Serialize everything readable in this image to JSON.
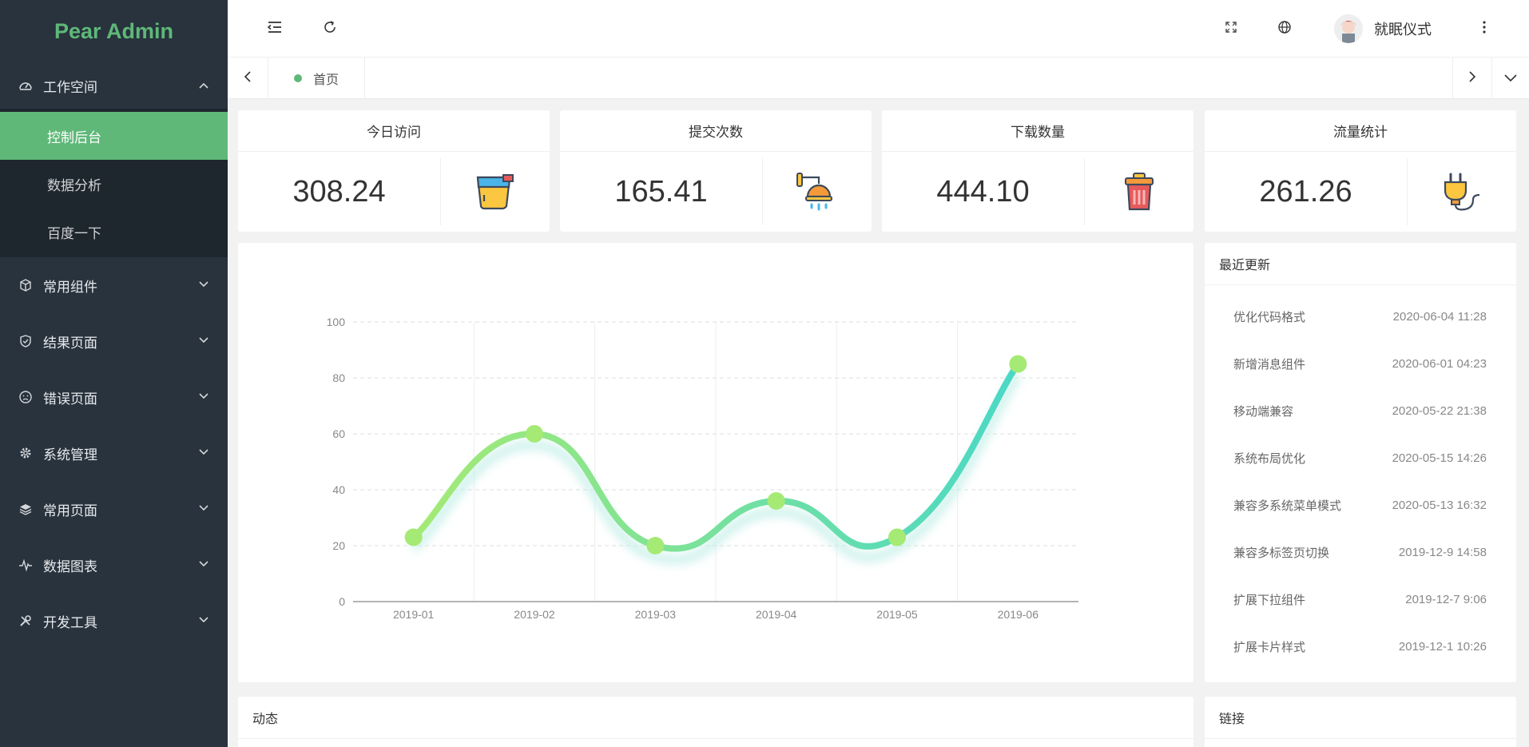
{
  "app": {
    "name": "Pear Admin"
  },
  "sidebar": {
    "workspace": {
      "label": "工作空间",
      "items": [
        {
          "label": "控制后台"
        },
        {
          "label": "数据分析"
        },
        {
          "label": "百度一下"
        }
      ]
    },
    "groups": [
      {
        "label": "常用组件"
      },
      {
        "label": "结果页面"
      },
      {
        "label": "错误页面"
      },
      {
        "label": "系统管理"
      },
      {
        "label": "常用页面"
      },
      {
        "label": "数据图表"
      },
      {
        "label": "开发工具"
      }
    ]
  },
  "header": {
    "user_name": "就眠仪式"
  },
  "tabs": [
    {
      "label": "首页"
    }
  ],
  "stats": [
    {
      "title": "今日访问",
      "value": "308.24",
      "icon": "paint-bucket-icon"
    },
    {
      "title": "提交次数",
      "value": "165.41",
      "icon": "shower-icon"
    },
    {
      "title": "下载数量",
      "value": "444.10",
      "icon": "trash-can-icon"
    },
    {
      "title": "流量统计",
      "value": "261.26",
      "icon": "plug-icon"
    }
  ],
  "chart_data": {
    "type": "line",
    "categories": [
      "2019-01",
      "2019-02",
      "2019-03",
      "2019-04",
      "2019-05",
      "2019-06"
    ],
    "series": [
      {
        "values": [
          23,
          60,
          20,
          36,
          23,
          85
        ]
      }
    ],
    "ylim": [
      0,
      100
    ],
    "yticks": [
      0,
      20,
      40,
      60,
      80,
      100
    ],
    "smooth": true,
    "colors": [
      "#a4ea74",
      "#4ad8c6"
    ],
    "grid": true
  },
  "updates": {
    "title": "最近更新",
    "items": [
      {
        "text": "优化代码格式",
        "time": "2020-06-04 11:28"
      },
      {
        "text": "新增消息组件",
        "time": "2020-06-01 04:23"
      },
      {
        "text": "移动端兼容",
        "time": "2020-05-22 21:38"
      },
      {
        "text": "系统布局优化",
        "time": "2020-05-15 14:26"
      },
      {
        "text": "兼容多系统菜单模式",
        "time": "2020-05-13 16:32"
      },
      {
        "text": "兼容多标签页切换",
        "time": "2019-12-9 14:58"
      },
      {
        "text": "扩展下拉组件",
        "time": "2019-12-7 9:06"
      },
      {
        "text": "扩展卡片样式",
        "time": "2019-12-1 10:26"
      }
    ]
  },
  "bottom": {
    "dynamic_title": "动态",
    "links_title": "链接"
  },
  "colors": {
    "accent": "#5fb878",
    "sidebar_bg": "#28333e",
    "submenu_bg": "#1e262e"
  }
}
